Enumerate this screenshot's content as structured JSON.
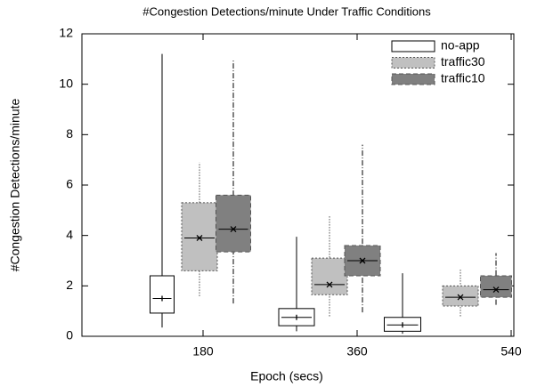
{
  "chart_data": {
    "type": "box",
    "title": "#Congestion Detections/minute Under Traffic Conditions",
    "x_label": "Epoch (secs)",
    "y_label": "#Congestion Detections/minute",
    "categories": [
      "180",
      "360",
      "540"
    ],
    "ylim": [
      0,
      12
    ],
    "yticks": [
      0,
      2,
      4,
      6,
      8,
      10,
      12
    ],
    "legend": "upper right",
    "series": [
      {
        "name": "no-app",
        "color": "#ffffff",
        "min": [
          0.35,
          0.2,
          0.1
        ],
        "q1": [
          0.92,
          0.42,
          0.2
        ],
        "median": [
          1.5,
          0.75,
          0.45
        ],
        "q3": [
          2.4,
          1.1,
          0.75
        ],
        "max": [
          11.2,
          3.95,
          2.5
        ]
      },
      {
        "name": "traffic30",
        "color": "#c0c0c0",
        "min": [
          1.6,
          0.8,
          0.8
        ],
        "q1": [
          2.6,
          1.65,
          1.2
        ],
        "median": [
          3.9,
          2.05,
          1.55
        ],
        "q3": [
          5.3,
          3.1,
          2.0
        ],
        "max": [
          6.9,
          4.75,
          2.65
        ]
      },
      {
        "name": "traffic10",
        "color": "#808080",
        "min": [
          1.3,
          0.95,
          1.25
        ],
        "q1": [
          3.35,
          2.4,
          1.55
        ],
        "median": [
          4.25,
          3.0,
          1.85
        ],
        "q3": [
          5.6,
          3.6,
          2.4
        ],
        "max": [
          11.0,
          7.6,
          3.3
        ]
      }
    ]
  }
}
